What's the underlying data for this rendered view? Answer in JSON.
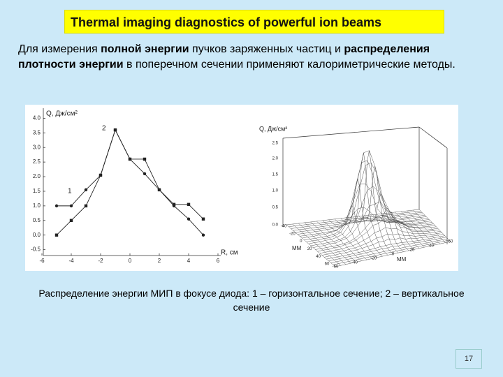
{
  "title": "Thermal imaging diagnostics of powerful ion beams",
  "paragraph": [
    {
      "text": "Для измерения ",
      "bold": false
    },
    {
      "text": "полной энергии",
      "bold": true
    },
    {
      "text": " пучков заряженных частиц и ",
      "bold": false
    },
    {
      "text": "распределения плотности энергии",
      "bold": true
    },
    {
      "text": " в поперечном сечении применяют калориметрические методы.",
      "bold": false
    }
  ],
  "chart_data": {
    "type": "line",
    "y_label": "Q, Дж/см²",
    "x_label": "R, см",
    "x": [
      -5,
      -4,
      -3,
      -2,
      -1,
      0,
      1,
      2,
      3,
      4,
      5
    ],
    "series": [
      {
        "name": "1",
        "color": "#222222",
        "marker": "circle",
        "values": [
          1.0,
          1.0,
          1.55,
          2.05,
          3.6,
          2.6,
          2.1,
          1.55,
          1.0,
          0.55,
          0.0
        ]
      },
      {
        "name": "2",
        "color": "#222222",
        "marker": "square",
        "values": [
          0.0,
          0.5,
          1.0,
          2.05,
          3.6,
          2.6,
          2.6,
          1.55,
          1.05,
          1.05,
          0.55
        ]
      }
    ],
    "xlim": [
      -6,
      6
    ],
    "ylim": [
      -0.7,
      4.2
    ],
    "xticks": [
      -6,
      -4,
      -2,
      0,
      2,
      4,
      6
    ],
    "yticks": [
      -0.5,
      {
        "value": 0,
        "label": "0.0"
      },
      0.5,
      {
        "value": 1,
        "label": "1.0"
      },
      1.5,
      {
        "value": 2,
        "label": "2.0"
      },
      2.5,
      {
        "value": 3,
        "label": "3.0"
      },
      3.5,
      {
        "value": 4,
        "label": "4.0"
      }
    ]
  },
  "surface_plot": {
    "z_label": "Q, Дж/см²",
    "z_tick_labels": [
      "2.5",
      "2.0",
      "1.5",
      "1.0",
      "0.5",
      "0.0"
    ],
    "left_axis_label": "ММ",
    "left_tick_labels": [
      "-40",
      "-20",
      "0",
      "20",
      "40",
      "60"
    ],
    "right_axis_label": "ММ",
    "right_tick_labels": [
      "-60",
      "-40",
      "-20",
      "0",
      "20",
      "40",
      "60"
    ]
  },
  "caption": "Распределение энергии МИП в фокусе диода: 1 – горизонтальное сечение; 2 – вертикальное сечение",
  "page_number": 17
}
